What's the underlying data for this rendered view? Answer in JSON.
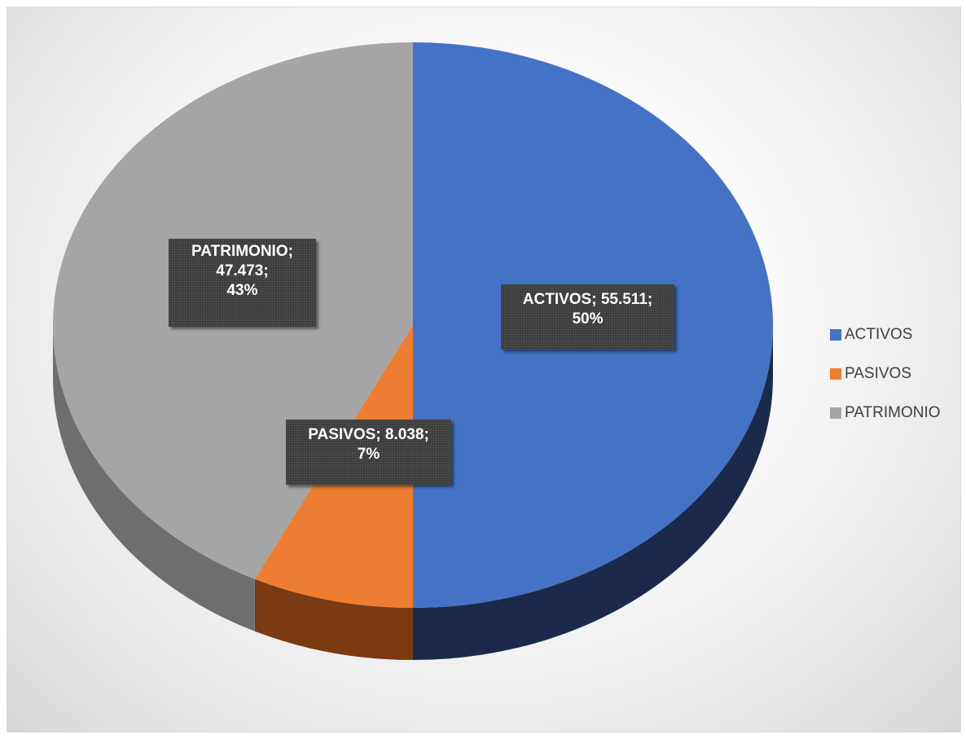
{
  "chart_data": {
    "type": "pie",
    "style": "3d",
    "title": "",
    "slices": [
      {
        "name": "ACTIVOS",
        "value": 55.511,
        "value_label": "55.511",
        "percent": 50,
        "percent_label": "50%",
        "color": "#4472C4",
        "side_color": "#1B2A4A"
      },
      {
        "name": "PASIVOS",
        "value": 8.038,
        "value_label": "8.038",
        "percent": 7,
        "percent_label": "7%",
        "color": "#ED7D31",
        "side_color": "#7A3A12"
      },
      {
        "name": "PATRIMONIO",
        "value": 47.473,
        "value_label": "47.473",
        "percent": 43,
        "percent_label": "43%",
        "color": "#A5A5A5",
        "side_color": "#6E6E6E"
      }
    ],
    "legend": {
      "placement": "right",
      "entries": [
        "ACTIVOS",
        "PASIVOS",
        "PATRIMONIO"
      ]
    }
  }
}
